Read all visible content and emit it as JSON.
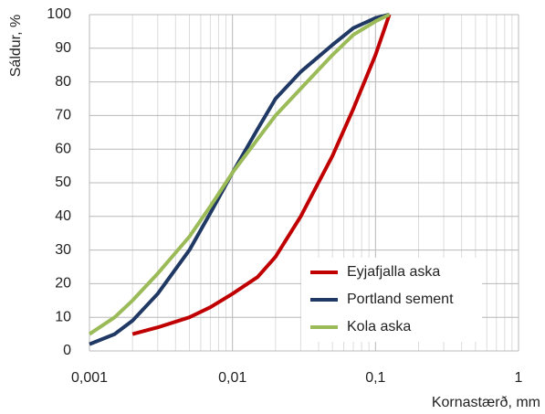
{
  "chart_data": {
    "type": "line",
    "log_x": true,
    "grid": true,
    "x_label": "Kornastærð, mm",
    "y_label": "Sáldur, %",
    "xlim": [
      0.001,
      1
    ],
    "ylim": [
      0,
      100
    ],
    "xticks": [
      {
        "value": 0.001,
        "label": "0,001"
      },
      {
        "value": 0.01,
        "label": "0,01"
      },
      {
        "value": 0.1,
        "label": "0,1"
      },
      1
    ],
    "yticks": [
      0,
      10,
      20,
      30,
      40,
      50,
      60,
      70,
      80,
      90,
      100
    ],
    "legend": "lower-right",
    "series": [
      {
        "name": "Eyjafjalla aska",
        "color": "#c00000",
        "x": [
          0.002,
          0.003,
          0.005,
          0.007,
          0.01,
          0.015,
          0.02,
          0.03,
          0.05,
          0.07,
          0.1,
          0.125
        ],
        "values": [
          5,
          7,
          10,
          13,
          17,
          22,
          28,
          40,
          58,
          72,
          88,
          100
        ]
      },
      {
        "name": "Portland sement",
        "color": "#1f3864",
        "x": [
          0.001,
          0.0015,
          0.002,
          0.003,
          0.005,
          0.007,
          0.01,
          0.015,
          0.02,
          0.03,
          0.05,
          0.07,
          0.1,
          0.125
        ],
        "values": [
          2,
          5,
          9,
          17,
          30,
          41,
          53,
          66,
          75,
          83,
          91,
          96,
          99,
          100
        ]
      },
      {
        "name": "Kola aska",
        "color": "#9bbb59",
        "x": [
          0.001,
          0.0015,
          0.002,
          0.003,
          0.005,
          0.007,
          0.01,
          0.015,
          0.02,
          0.03,
          0.05,
          0.07,
          0.1,
          0.125
        ],
        "values": [
          5,
          10,
          15,
          23,
          34,
          43,
          53,
          63,
          70,
          78,
          88,
          94,
          98,
          100
        ]
      }
    ]
  }
}
